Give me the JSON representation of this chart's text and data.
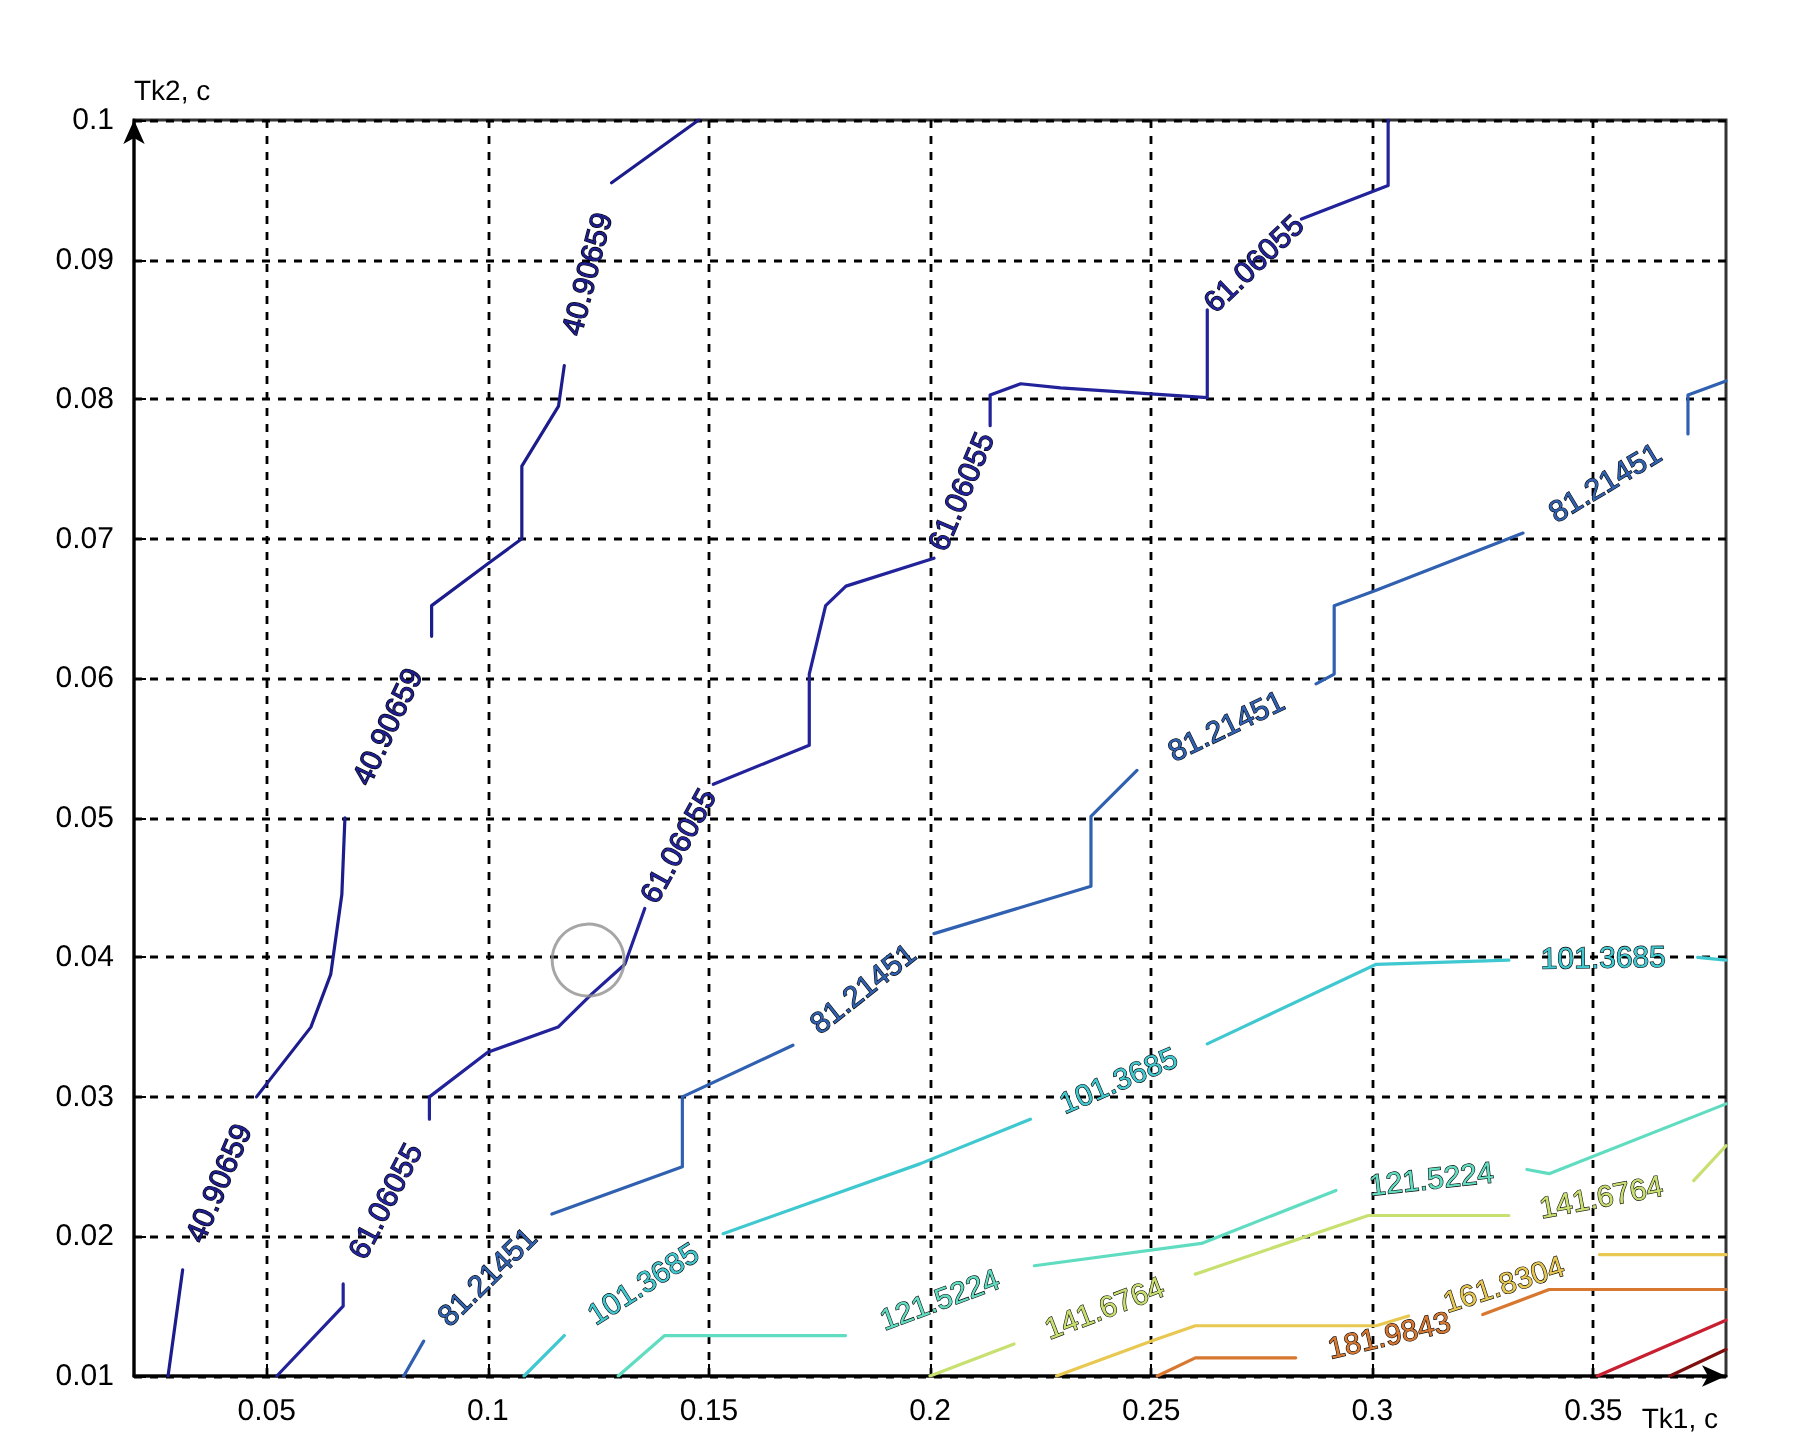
{
  "chart_data": {
    "type": "line",
    "xlabel": "Tk1, c",
    "ylabel": "Tk2, c",
    "xlim": [
      0.02,
      0.38
    ],
    "xticks": [
      0.05,
      0.1,
      0.15,
      0.2,
      0.25,
      0.3,
      0.35
    ],
    "ylim": [
      0.01,
      0.1
    ],
    "yticks": [
      0.01,
      0.02,
      0.03,
      0.04,
      0.05,
      0.06,
      0.07,
      0.08,
      0.09,
      0.1
    ],
    "grid": true,
    "marker": "none",
    "line_style": "solid",
    "series": [
      {
        "name": "40.90659",
        "color": "#1c1c8c",
        "x": [
          0.0277,
          0.031,
          0.039,
          0.0477,
          0.06,
          0.0645,
          0.067,
          0.0677,
          0.077,
          0.0873,
          0.0873,
          0.1,
          0.1077,
          0.1077,
          0.116,
          0.1173,
          0.122,
          0.128,
          0.1477
        ],
        "values": [
          0.01,
          0.0176,
          null,
          0.03,
          0.035,
          0.0388,
          0.0445,
          0.05,
          null,
          0.063,
          0.0652,
          0.0682,
          0.07,
          0.0752,
          0.0795,
          0.0824,
          null,
          0.0955,
          0.1
        ]
      },
      {
        "name": "61.06055",
        "color": "#22229a",
        "x": [
          0.0523,
          0.0673,
          0.0673,
          0.077,
          0.0868,
          0.0868,
          0.1,
          0.1159,
          0.1236,
          0.131,
          0.1355,
          0.143,
          0.151,
          0.1727,
          0.1727,
          0.1764,
          0.181,
          0.2009,
          0.207,
          0.2136,
          0.2136,
          0.2205,
          0.2295,
          0.2627,
          0.2627,
          0.273,
          0.284,
          0.3036,
          0.3036
        ],
        "values": [
          0.01,
          0.015,
          0.0166,
          null,
          0.0284,
          0.03,
          0.0332,
          0.035,
          0.0374,
          0.0395,
          0.0435,
          null,
          0.0524,
          0.0552,
          0.0603,
          0.0652,
          0.0666,
          0.0686,
          null,
          0.0781,
          0.0803,
          0.0811,
          0.0808,
          0.0801,
          0.0864,
          null,
          0.0929,
          0.0953,
          0.1
        ]
      },
      {
        "name": "81.21451",
        "color": "#3060b0",
        "x": [
          0.081,
          0.0855,
          0.1,
          0.1145,
          0.144,
          0.144,
          0.169,
          0.185,
          0.2009,
          0.2364,
          0.2364,
          0.2468,
          0.267,
          0.2873,
          0.2914,
          0.2914,
          0.3009,
          0.3341,
          0.353,
          0.3714,
          0.3714,
          0.38
        ],
        "values": [
          0.01,
          0.0125,
          null,
          0.0216,
          0.025,
          0.03,
          0.0337,
          null,
          0.0417,
          0.0451,
          0.0501,
          0.0534,
          null,
          0.0596,
          0.0603,
          0.0652,
          0.0663,
          0.0704,
          null,
          0.0775,
          0.0803,
          0.0813
        ]
      },
      {
        "name": "101.3685",
        "color": "#40c8d0",
        "x": [
          0.1082,
          0.1173,
          0.135,
          0.1532,
          0.1977,
          0.2227,
          0.243,
          0.2627,
          0.3009,
          0.3309,
          0.352,
          0.3736,
          0.38
        ],
        "values": [
          0.01,
          0.0129,
          null,
          0.0202,
          0.0252,
          0.0284,
          null,
          0.0338,
          0.0395,
          0.0398,
          null,
          0.04,
          0.0398
        ]
      },
      {
        "name": "121.5224",
        "color": "#60dcc0",
        "x": [
          0.1295,
          0.14,
          0.1809,
          0.202,
          0.2236,
          0.2614,
          0.2918,
          0.313,
          0.335,
          0.34,
          0.38
        ],
        "values": [
          0.01,
          0.0129,
          0.0129,
          null,
          0.0179,
          0.0195,
          0.0233,
          null,
          0.0248,
          0.0245,
          0.0295
        ]
      },
      {
        "name": "141.6764",
        "color": "#c8e070",
        "x": [
          0.2,
          0.219,
          0.24,
          0.26,
          0.2991,
          0.3309,
          0.352,
          0.3727,
          0.38
        ],
        "values": [
          0.01,
          0.0123,
          null,
          0.0173,
          0.0215,
          0.0215,
          null,
          0.024,
          0.0265
        ]
      },
      {
        "name": "161.8304",
        "color": "#e8c850",
        "x": [
          0.2286,
          0.2509,
          0.26,
          0.3009,
          0.3082,
          0.33,
          0.3514,
          0.38
        ],
        "values": [
          0.01,
          0.0126,
          0.0136,
          0.0136,
          0.0143,
          null,
          0.0187,
          0.0187
        ]
      },
      {
        "name": "181.9843",
        "color": "#d87830",
        "x": [
          0.2514,
          0.26,
          0.2827,
          0.304,
          0.325,
          0.34,
          0.38
        ],
        "values": [
          0.01,
          0.0113,
          0.0113,
          null,
          0.0144,
          0.0162,
          0.0162
        ]
      },
      {
        "color": "#c82030",
        "x": [
          0.3509,
          0.38
        ],
        "values": [
          0.01,
          0.014
        ]
      },
      {
        "color": "#801010",
        "x": [
          0.3673,
          0.38
        ],
        "values": [
          0.01,
          0.0119
        ]
      },
      {
        "type": "scatter",
        "color": "#909090",
        "marker": "circle",
        "x": [
          0.1227
        ],
        "values": [
          0.0398
        ]
      }
    ]
  }
}
